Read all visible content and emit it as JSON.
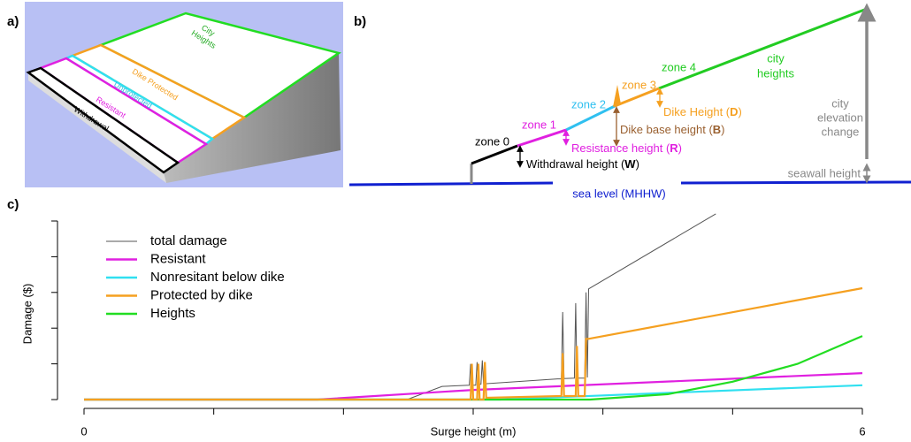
{
  "panel_labels": {
    "a": "a)",
    "b": "b)",
    "c": "c)"
  },
  "rendering": {
    "city": [
      "City",
      "Heights"
    ],
    "dike": "Dike Protected",
    "unprotected": "Unprotected",
    "resistant": "Resistant",
    "withdrawal": "Withdrawal"
  },
  "diagram": {
    "zones": [
      "zone 0",
      "zone 1",
      "zone 2",
      "zone 3",
      "zone 4"
    ],
    "city": [
      "city",
      "heights"
    ],
    "withdrawal": [
      "Withdrawal height (",
      "W",
      ")"
    ],
    "resistance": [
      "Resistance height (",
      "R",
      ")"
    ],
    "dike_base": [
      "Dike base height (",
      "B",
      ")"
    ],
    "dike_height": [
      "Dike Height (",
      "D",
      ")"
    ],
    "elevation": [
      "city",
      "elevation",
      "change"
    ],
    "seawall": "seawall height",
    "sea_level": "sea level (MHHW)"
  },
  "chart_data": {
    "type": "line",
    "xlabel": "Surge height  (m)",
    "ylabel": "Damage ($)",
    "xlim": [
      0,
      6
    ],
    "xticks": [
      0,
      1,
      2,
      3,
      4,
      5,
      6
    ],
    "xtick_labels_shown": [
      0,
      6
    ],
    "ylim": [
      0,
      5.2
    ],
    "yticks": [
      0,
      1,
      2,
      3,
      4,
      5
    ],
    "legend": "upper-left",
    "series": [
      {
        "name": "total damage",
        "color": "#555555",
        "x": [
          0,
          2.49,
          2.76,
          2.97,
          2.98,
          2.99,
          3.02,
          3.03,
          3.04,
          3.06,
          3.07,
          3.08,
          3.65,
          3.68,
          3.69,
          3.7,
          3.78,
          3.79,
          3.8,
          3.86,
          3.87,
          3.88,
          3.89,
          4.87
        ],
        "values": [
          0,
          0,
          0.37,
          0.4,
          1.0,
          0.4,
          0.4,
          1.05,
          0.42,
          0.43,
          1.1,
          0.44,
          0.58,
          0.58,
          2.45,
          0.59,
          0.6,
          2.7,
          0.6,
          0.6,
          3.0,
          0.62,
          3.1,
          5.2
        ]
      },
      {
        "name": "Resistant",
        "color": "#e020e0",
        "x": [
          0,
          1.8,
          3.0,
          6
        ],
        "values": [
          0,
          0,
          0.27,
          0.74
        ]
      },
      {
        "name": "Nonresitant below dike",
        "color": "#30e0f0",
        "x": [
          0,
          3.2,
          6
        ],
        "values": [
          0,
          0,
          0.4
        ]
      },
      {
        "name": "Protected by dike",
        "color": "#f5a020",
        "x": [
          0,
          2.98,
          2.99,
          3.0,
          3.03,
          3.04,
          3.05,
          3.08,
          3.09,
          3.1,
          3.68,
          3.69,
          3.7,
          3.79,
          3.8,
          3.81,
          3.86,
          3.87,
          3.89,
          6
        ],
        "values": [
          0,
          0,
          1.0,
          0,
          0,
          1.0,
          0,
          0,
          1.05,
          0.05,
          0.1,
          1.3,
          0.1,
          0.1,
          1.5,
          0.1,
          0.1,
          1.7,
          1.7,
          3.12
        ]
      },
      {
        "name": "Heights",
        "color": "#22dd22",
        "x": [
          0,
          3.9,
          4.5,
          5,
          5.5,
          6
        ],
        "values": [
          0,
          0,
          0.15,
          0.5,
          1.0,
          1.78
        ]
      }
    ]
  }
}
